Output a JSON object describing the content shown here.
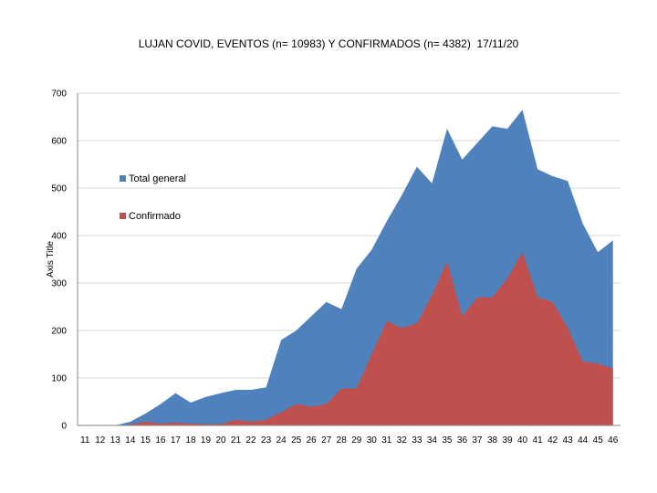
{
  "title": "LUJAN COVID, EVENTOS (n= 10983) Y CONFIRMADOS (n= 4382)  17/11/20",
  "colors": {
    "total": "#4f81bd",
    "confirmed": "#c0504d",
    "grid": "#d9d9d9",
    "axis": "#868686"
  },
  "chart_data": {
    "type": "area",
    "title": "LUJAN COVID, EVENTOS (n= 10983) Y CONFIRMADOS (n= 4382)  17/11/20",
    "xlabel": "",
    "ylabel": "Axis Title",
    "ylim": [
      0,
      700
    ],
    "yticks": [
      0,
      100,
      200,
      300,
      400,
      500,
      600,
      700
    ],
    "grid": true,
    "legend": "inside-left",
    "x": [
      "11",
      "12",
      "13",
      "14",
      "15",
      "16",
      "17",
      "18",
      "19",
      "20",
      "21",
      "22",
      "23",
      "24",
      "25",
      "26",
      "27",
      "28",
      "29",
      "30",
      "31",
      "32",
      "33",
      "34",
      "35",
      "36",
      "37",
      "38",
      "39",
      "40",
      "41",
      "42",
      "43",
      "44",
      "45",
      "46"
    ],
    "series": [
      {
        "name": "Total general",
        "values": [
          0,
          0,
          0,
          8,
          25,
          45,
          68,
          48,
          60,
          68,
          75,
          75,
          80,
          180,
          200,
          230,
          260,
          245,
          330,
          370,
          430,
          485,
          545,
          510,
          625,
          560,
          595,
          630,
          625,
          665,
          540,
          525,
          515,
          425,
          365,
          390
        ]
      },
      {
        "name": "Confirmado",
        "values": [
          0,
          0,
          0,
          2,
          8,
          4,
          6,
          4,
          3,
          3,
          12,
          8,
          12,
          28,
          45,
          40,
          45,
          78,
          78,
          150,
          220,
          205,
          215,
          275,
          345,
          230,
          270,
          270,
          310,
          365,
          270,
          260,
          205,
          135,
          130,
          120
        ]
      }
    ]
  }
}
